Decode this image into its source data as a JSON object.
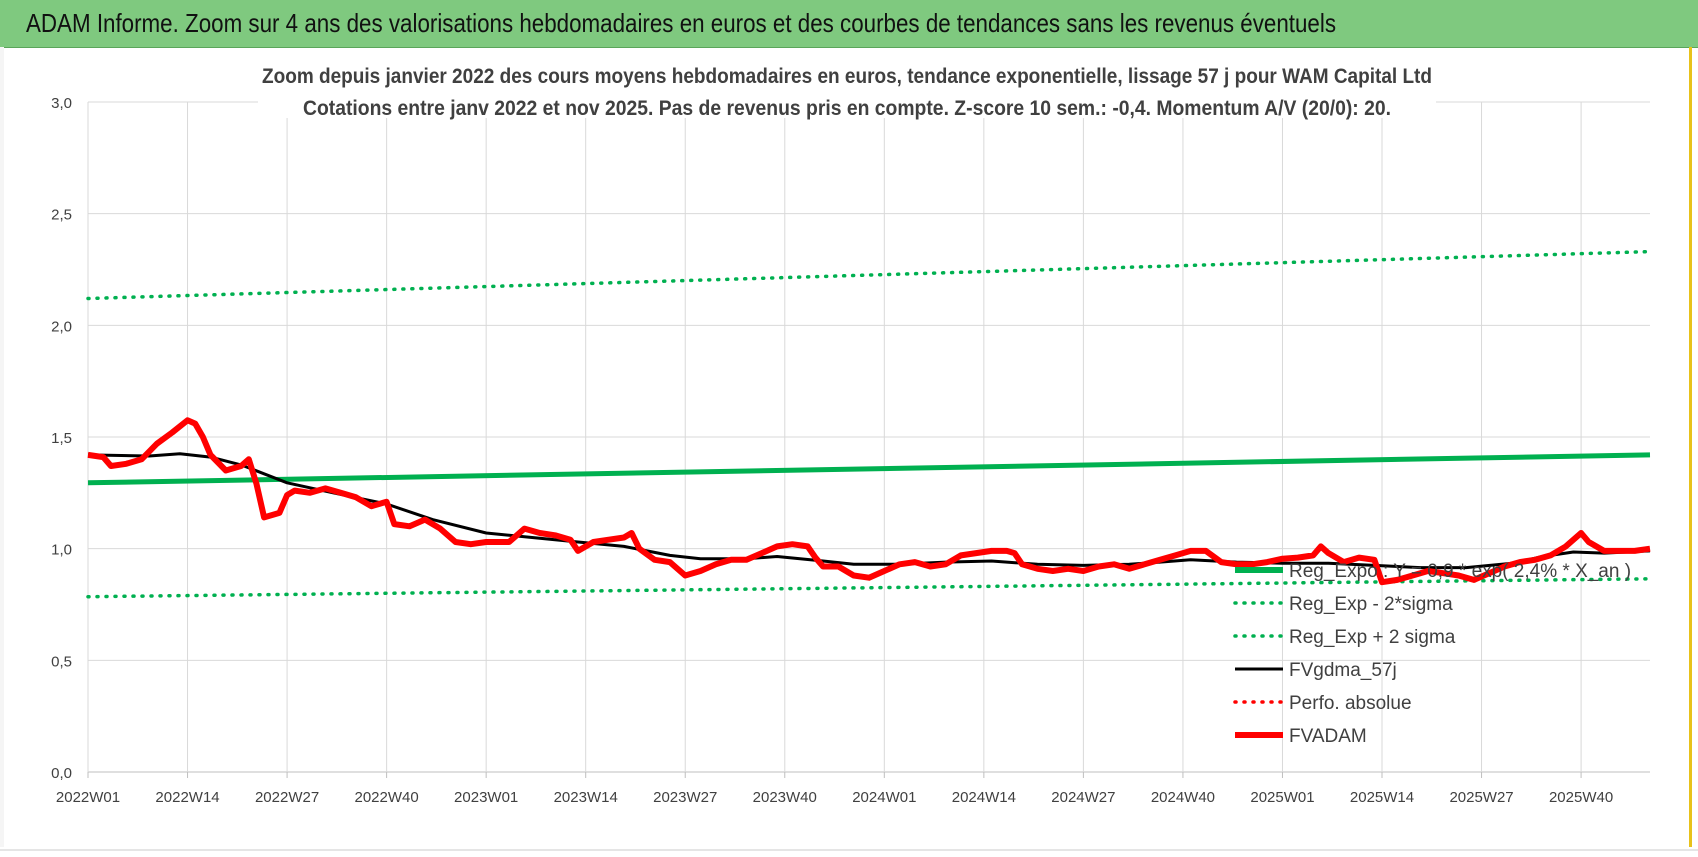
{
  "header": {
    "title": "ADAM Informe. Zoom sur 4 ans des valorisations hebdomadaires en euros et des courbes de tendances sans les revenus éventuels"
  },
  "colors": {
    "header_bg": "#7fc97f",
    "reg_expo": "#00b050",
    "fvadam": "#ff0000",
    "fvgdma": "#000000",
    "grid": "#d9d9d9",
    "text": "#404040"
  },
  "chart_data": {
    "type": "line",
    "title": "Zoom depuis janvier 2022 des cours moyens hebdomadaires en euros, tendance exponentielle, lissage 57 j pour WAM Capital Ltd",
    "subtitle": "Cotations entre janv 2022 et nov 2025. Pas de revenus pris en compte. Z-score 10 sem.: -0,4. Momentum A/V (20/0): 20.",
    "xlabel": "",
    "ylabel": "",
    "ylim": [
      0,
      3
    ],
    "yticks": [
      "0,0",
      "0,5",
      "1,0",
      "1,5",
      "2,0",
      "2,5",
      "3,0"
    ],
    "x_range": [
      0,
      204
    ],
    "x_ticks": [
      {
        "label": "2022W01",
        "x": 0
      },
      {
        "label": "2022W14",
        "x": 13
      },
      {
        "label": "2022W27",
        "x": 26
      },
      {
        "label": "2022W40",
        "x": 39
      },
      {
        "label": "2023W01",
        "x": 52
      },
      {
        "label": "2023W14",
        "x": 65
      },
      {
        "label": "2023W27",
        "x": 78
      },
      {
        "label": "2023W40",
        "x": 91
      },
      {
        "label": "2024W01",
        "x": 104
      },
      {
        "label": "2024W14",
        "x": 117
      },
      {
        "label": "2024W27",
        "x": 130
      },
      {
        "label": "2024W40",
        "x": 143
      },
      {
        "label": "2025W01",
        "x": 156
      },
      {
        "label": "2025W14",
        "x": 169
      },
      {
        "label": "2025W27",
        "x": 182
      },
      {
        "label": "2025W40",
        "x": 195
      }
    ],
    "grid": true,
    "legend_position": "bottom-right",
    "series": [
      {
        "name": "Reg_Expo : Y = 0,9 * exp( 2,4% * X_an )",
        "style": "thick-solid",
        "color": "#00b050",
        "points": [
          [
            0,
            1.295
          ],
          [
            204,
            1.42
          ]
        ]
      },
      {
        "name": "Reg_Exp - 2*sigma",
        "style": "dotted",
        "color": "#00b050",
        "points": [
          [
            0,
            0.785
          ],
          [
            204,
            0.865
          ]
        ]
      },
      {
        "name": "Reg_Exp + 2 sigma",
        "style": "dotted",
        "color": "#00b050",
        "points": [
          [
            0,
            2.12
          ],
          [
            204,
            2.33
          ]
        ]
      },
      {
        "name": "FVgdma_57j",
        "style": "solid",
        "color": "#000000",
        "points": [
          [
            0,
            1.42
          ],
          [
            8,
            1.415
          ],
          [
            12,
            1.425
          ],
          [
            16,
            1.41
          ],
          [
            20,
            1.375
          ],
          [
            26,
            1.295
          ],
          [
            32,
            1.25
          ],
          [
            39,
            1.2
          ],
          [
            45,
            1.13
          ],
          [
            52,
            1.07
          ],
          [
            58,
            1.05
          ],
          [
            64,
            1.03
          ],
          [
            70,
            1.01
          ],
          [
            76,
            0.97
          ],
          [
            80,
            0.955
          ],
          [
            86,
            0.955
          ],
          [
            90,
            0.965
          ],
          [
            96,
            0.945
          ],
          [
            100,
            0.93
          ],
          [
            106,
            0.93
          ],
          [
            112,
            0.94
          ],
          [
            118,
            0.945
          ],
          [
            124,
            0.93
          ],
          [
            130,
            0.925
          ],
          [
            136,
            0.93
          ],
          [
            140,
            0.94
          ],
          [
            144,
            0.95
          ],
          [
            150,
            0.94
          ],
          [
            156,
            0.935
          ],
          [
            162,
            0.935
          ],
          [
            168,
            0.925
          ],
          [
            174,
            0.915
          ],
          [
            180,
            0.915
          ],
          [
            186,
            0.935
          ],
          [
            190,
            0.965
          ],
          [
            194,
            0.985
          ],
          [
            198,
            0.98
          ],
          [
            204,
            0.99
          ]
        ]
      }
    ],
    "series_main": {
      "name": "FVADAM",
      "style": "thick-solid",
      "color": "#ff0000",
      "points": [
        [
          0,
          1.42
        ],
        [
          2,
          1.41
        ],
        [
          3,
          1.37
        ],
        [
          5,
          1.38
        ],
        [
          7,
          1.4
        ],
        [
          9,
          1.47
        ],
        [
          11,
          1.52
        ],
        [
          13,
          1.575
        ],
        [
          14,
          1.56
        ],
        [
          15,
          1.5
        ],
        [
          16,
          1.42
        ],
        [
          18,
          1.35
        ],
        [
          20,
          1.37
        ],
        [
          21,
          1.4
        ],
        [
          22,
          1.29
        ],
        [
          23,
          1.14
        ],
        [
          25,
          1.16
        ],
        [
          26,
          1.24
        ],
        [
          27,
          1.26
        ],
        [
          29,
          1.25
        ],
        [
          31,
          1.27
        ],
        [
          33,
          1.25
        ],
        [
          35,
          1.23
        ],
        [
          37,
          1.19
        ],
        [
          38,
          1.2
        ],
        [
          39,
          1.21
        ],
        [
          40,
          1.11
        ],
        [
          42,
          1.1
        ],
        [
          44,
          1.13
        ],
        [
          46,
          1.09
        ],
        [
          48,
          1.03
        ],
        [
          50,
          1.02
        ],
        [
          52,
          1.03
        ],
        [
          55,
          1.03
        ],
        [
          57,
          1.09
        ],
        [
          59,
          1.07
        ],
        [
          61,
          1.06
        ],
        [
          63,
          1.04
        ],
        [
          64,
          0.99
        ],
        [
          66,
          1.03
        ],
        [
          68,
          1.04
        ],
        [
          70,
          1.05
        ],
        [
          71,
          1.07
        ],
        [
          72,
          1.0
        ],
        [
          74,
          0.95
        ],
        [
          76,
          0.94
        ],
        [
          78,
          0.88
        ],
        [
          80,
          0.9
        ],
        [
          82,
          0.93
        ],
        [
          84,
          0.95
        ],
        [
          86,
          0.95
        ],
        [
          88,
          0.98
        ],
        [
          90,
          1.01
        ],
        [
          92,
          1.02
        ],
        [
          94,
          1.01
        ],
        [
          95,
          0.96
        ],
        [
          96,
          0.92
        ],
        [
          98,
          0.92
        ],
        [
          100,
          0.88
        ],
        [
          102,
          0.87
        ],
        [
          104,
          0.9
        ],
        [
          106,
          0.93
        ],
        [
          108,
          0.94
        ],
        [
          110,
          0.92
        ],
        [
          112,
          0.93
        ],
        [
          114,
          0.97
        ],
        [
          116,
          0.98
        ],
        [
          118,
          0.99
        ],
        [
          120,
          0.99
        ],
        [
          121,
          0.98
        ],
        [
          122,
          0.93
        ],
        [
          124,
          0.91
        ],
        [
          126,
          0.9
        ],
        [
          128,
          0.91
        ],
        [
          130,
          0.9
        ],
        [
          132,
          0.92
        ],
        [
          134,
          0.93
        ],
        [
          136,
          0.91
        ],
        [
          138,
          0.93
        ],
        [
          140,
          0.95
        ],
        [
          142,
          0.97
        ],
        [
          144,
          0.99
        ],
        [
          146,
          0.99
        ],
        [
          148,
          0.94
        ],
        [
          150,
          0.93
        ],
        [
          152,
          0.93
        ],
        [
          154,
          0.94
        ],
        [
          156,
          0.955
        ],
        [
          158,
          0.96
        ],
        [
          160,
          0.97
        ],
        [
          161,
          1.01
        ],
        [
          162,
          0.98
        ],
        [
          164,
          0.94
        ],
        [
          166,
          0.96
        ],
        [
          168,
          0.95
        ],
        [
          169,
          0.85
        ],
        [
          171,
          0.86
        ],
        [
          173,
          0.88
        ],
        [
          175,
          0.9
        ],
        [
          177,
          0.89
        ],
        [
          179,
          0.88
        ],
        [
          181,
          0.86
        ],
        [
          183,
          0.89
        ],
        [
          185,
          0.92
        ],
        [
          187,
          0.94
        ],
        [
          189,
          0.95
        ],
        [
          191,
          0.97
        ],
        [
          193,
          1.01
        ],
        [
          195,
          1.07
        ],
        [
          196,
          1.03
        ],
        [
          198,
          0.99
        ],
        [
          200,
          0.99
        ],
        [
          202,
          0.99
        ],
        [
          204,
          1.0
        ]
      ]
    },
    "legend": [
      {
        "label": "Reg_Expo : Y = 0,9 * exp( 2,4% * X_an )",
        "style": "thick-solid",
        "color": "#00b050"
      },
      {
        "label": "Reg_Exp - 2*sigma",
        "style": "dotted",
        "color": "#00b050"
      },
      {
        "label": "Reg_Exp + 2 sigma",
        "style": "dotted",
        "color": "#00b050"
      },
      {
        "label": "FVgdma_57j",
        "style": "solid",
        "color": "#000000"
      },
      {
        "label": "Perfo. absolue",
        "style": "dotted",
        "color": "#ff0000"
      },
      {
        "label": "FVADAM",
        "style": "thick-solid",
        "color": "#ff0000"
      }
    ]
  }
}
